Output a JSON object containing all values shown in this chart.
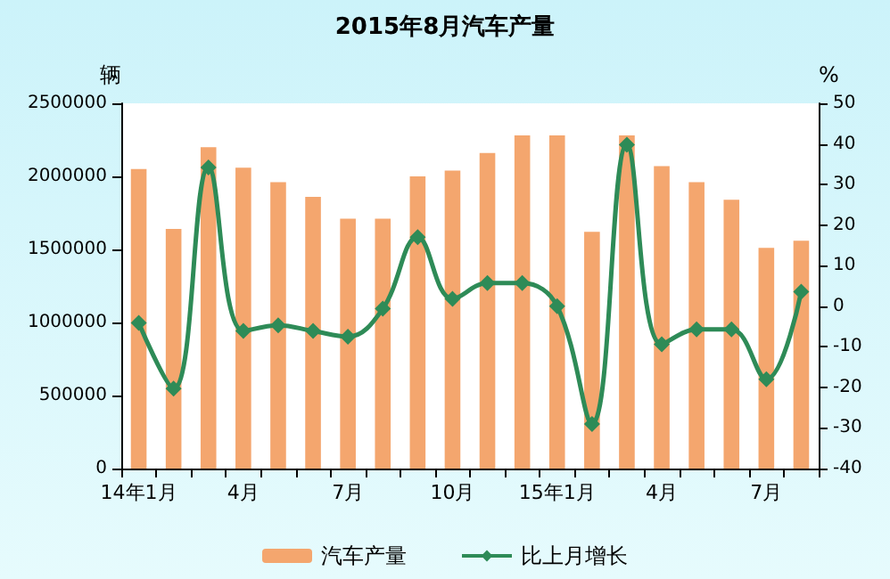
{
  "chart_data": {
    "type": "bar",
    "title": "2015年8月汽车产量",
    "ylabel": "辆",
    "y2label": "%",
    "categories": [
      "14年1月",
      null,
      null,
      "4月",
      null,
      null,
      "7月",
      null,
      null,
      "10月",
      null,
      null,
      "15年1月",
      null,
      null,
      "4月",
      null,
      null,
      "7月",
      null
    ],
    "series": [
      {
        "name": "汽车产量",
        "color": "#f4a66e",
        "values": [
          2050000,
          1640000,
          2200000,
          2060000,
          1960000,
          1860000,
          1710000,
          1710000,
          2000000,
          2040000,
          2160000,
          2280000,
          2280000,
          1620000,
          2280000,
          2070000,
          1960000,
          1840000,
          1510000,
          1560000
        ]
      },
      {
        "name": "比上月增长",
        "type": "line",
        "axis": "y2",
        "color": "#2e8b57",
        "marker": "diamond",
        "values": [
          -4.1,
          -20.3,
          34.2,
          -6.1,
          -4.7,
          -6.1,
          -7.5,
          -0.6,
          17,
          1.8,
          5.7,
          5.7,
          0,
          -29,
          39.8,
          -9.4,
          -5.7,
          -5.7,
          -18,
          3.6
        ]
      }
    ],
    "ylim": [
      0,
      2500000
    ],
    "yticks": [
      0,
      500000,
      1000000,
      1500000,
      2000000,
      2500000
    ],
    "y2lim": [
      -40,
      50
    ],
    "y2ticks": [
      -40,
      -30,
      -20,
      -10,
      0,
      10,
      20,
      30,
      40,
      50
    ],
    "grid": false,
    "legend": "bottom"
  }
}
